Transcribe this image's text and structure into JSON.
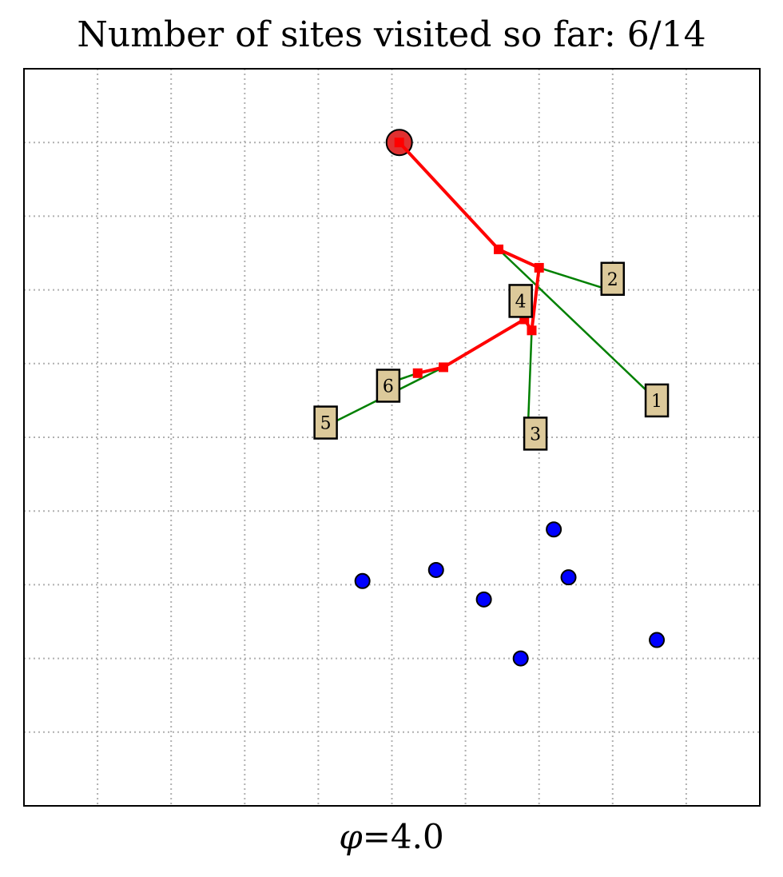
{
  "chart_data": {
    "type": "scatter",
    "title": "Number of sites visited so far: 6/14",
    "xlabel_symbol": "φ",
    "xlabel_value": "=4.0",
    "xlim": [
      0,
      10
    ],
    "ylim": [
      0,
      10
    ],
    "grid": true,
    "start": {
      "x": 5.1,
      "y": 9.0
    },
    "visited_sites": [
      {
        "label": "1",
        "x": 8.6,
        "y": 5.5
      },
      {
        "label": "2",
        "x": 8.0,
        "y": 7.15
      },
      {
        "label": "3",
        "x": 6.95,
        "y": 5.05
      },
      {
        "label": "4",
        "x": 6.75,
        "y": 6.85
      },
      {
        "label": "5",
        "x": 4.1,
        "y": 5.2
      },
      {
        "label": "6",
        "x": 4.95,
        "y": 5.7
      }
    ],
    "path": [
      {
        "x": 5.1,
        "y": 9.0
      },
      {
        "x": 6.45,
        "y": 7.55
      },
      {
        "x": 7.0,
        "y": 7.3
      },
      {
        "x": 6.9,
        "y": 6.45
      },
      {
        "x": 6.8,
        "y": 6.6
      },
      {
        "x": 5.7,
        "y": 5.95
      },
      {
        "x": 5.35,
        "y": 5.87
      }
    ],
    "connectors": [
      {
        "from": {
          "x": 6.45,
          "y": 7.55
        },
        "to": {
          "x": 8.55,
          "y": 5.55
        }
      },
      {
        "from": {
          "x": 7.0,
          "y": 7.3
        },
        "to": {
          "x": 7.95,
          "y": 7.0
        }
      },
      {
        "from": {
          "x": 6.9,
          "y": 6.45
        },
        "to": {
          "x": 6.85,
          "y": 5.15
        }
      },
      {
        "from": {
          "x": 6.8,
          "y": 6.6
        },
        "to": {
          "x": 6.8,
          "y": 6.9
        }
      },
      {
        "from": {
          "x": 5.7,
          "y": 5.95
        },
        "to": {
          "x": 4.1,
          "y": 5.15
        }
      },
      {
        "from": {
          "x": 5.35,
          "y": 5.87
        },
        "to": {
          "x": 5.0,
          "y": 5.75
        }
      }
    ],
    "unvisited_sites": [
      {
        "x": 7.2,
        "y": 3.75
      },
      {
        "x": 5.6,
        "y": 3.2
      },
      {
        "x": 4.6,
        "y": 3.05
      },
      {
        "x": 7.4,
        "y": 3.1
      },
      {
        "x": 6.25,
        "y": 2.8
      },
      {
        "x": 6.75,
        "y": 2.0
      },
      {
        "x": 8.6,
        "y": 2.25
      }
    ],
    "colors": {
      "path": "#ff0000",
      "connector": "#008000",
      "unvisited": "#0000ff",
      "label_fill": "#dcc99a",
      "start": "#e03030",
      "grid": "#b0b0b0"
    }
  }
}
